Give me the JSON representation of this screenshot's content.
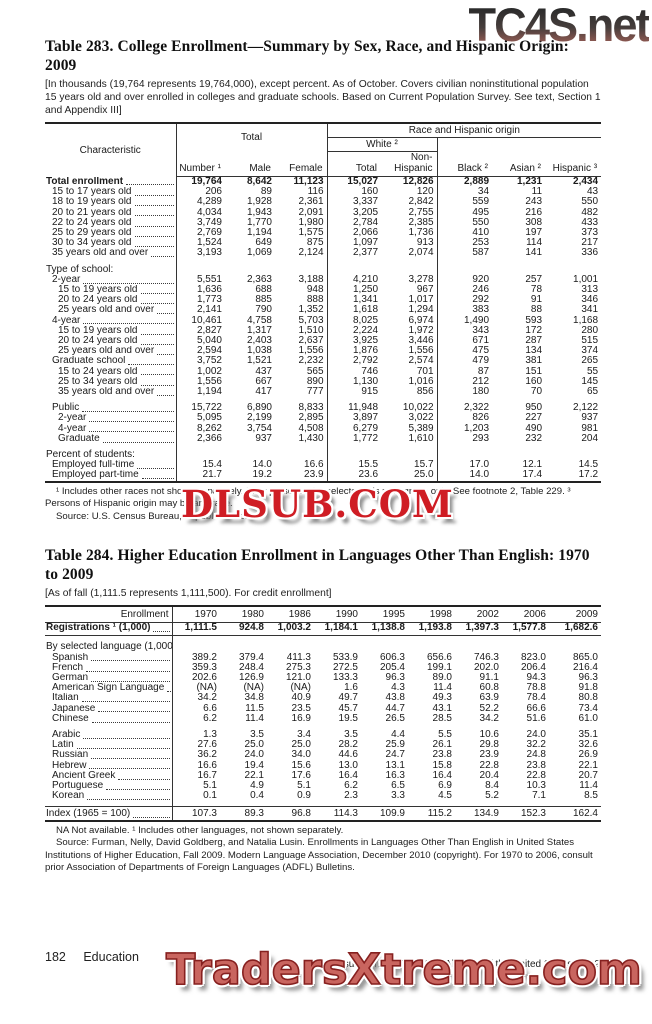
{
  "watermarks": {
    "top": "TC4S.net",
    "middle": "DLSUB.COM",
    "bottom": "TradersXtreme.com",
    "colors": {
      "middle_red": "#cf1d24",
      "bottom_salmon": "#c9655f",
      "top_gradient_end": "#8e5047"
    }
  },
  "table283": {
    "title": "Table 283. College Enrollment—Summary by Sex, Race, and Hispanic Origin: 2009",
    "headnote": "[In thousands (19,764 represents 19,764,000), except percent. As of October. Covers civilian noninstitutional population 15 years old and over enrolled in colleges and graduate schools. Based on Current Population Survey. See text, Section 1 and Appendix III]",
    "header": {
      "characteristic": "Characteristic",
      "total_group": "Total",
      "race_group": "Race and Hispanic origin",
      "white_group": "White ²",
      "columns": [
        "Number ¹",
        "Male",
        "Female",
        "Total",
        "Non-Hispanic",
        "Black ²",
        "Asian ²",
        "Hispanic ³"
      ]
    },
    "rows": [
      {
        "label": "Total enrollment",
        "indent": 0,
        "bold": true,
        "values": [
          "19,764",
          "8,642",
          "11,123",
          "15,027",
          "12,826",
          "2,889",
          "1,231",
          "2,434"
        ]
      },
      {
        "label": "15 to 17 years old",
        "indent": 1,
        "values": [
          "206",
          "89",
          "116",
          "160",
          "120",
          "34",
          "11",
          "43"
        ]
      },
      {
        "label": "18 to 19 years old",
        "indent": 1,
        "values": [
          "4,289",
          "1,928",
          "2,361",
          "3,337",
          "2,842",
          "559",
          "243",
          "550"
        ]
      },
      {
        "label": "20 to 21 years old",
        "indent": 1,
        "values": [
          "4,034",
          "1,943",
          "2,091",
          "3,205",
          "2,755",
          "495",
          "216",
          "482"
        ]
      },
      {
        "label": "22 to 24 years old",
        "indent": 1,
        "values": [
          "3,749",
          "1,770",
          "1,980",
          "2,784",
          "2,385",
          "550",
          "308",
          "433"
        ]
      },
      {
        "label": "25 to 29 years old",
        "indent": 1,
        "values": [
          "2,769",
          "1,194",
          "1,575",
          "2,066",
          "1,736",
          "410",
          "197",
          "373"
        ]
      },
      {
        "label": "30 to 34 years old",
        "indent": 1,
        "values": [
          "1,524",
          "649",
          "875",
          "1,097",
          "913",
          "253",
          "114",
          "217"
        ]
      },
      {
        "label": "35 years old and over",
        "indent": 1,
        "values": [
          "3,193",
          "1,069",
          "2,124",
          "2,377",
          "2,074",
          "587",
          "141",
          "336"
        ]
      },
      {
        "label": "Type of school:",
        "indent": 0,
        "section": true,
        "gap": true
      },
      {
        "label": "2-year",
        "indent": 1,
        "values": [
          "5,551",
          "2,363",
          "3,188",
          "4,210",
          "3,278",
          "920",
          "257",
          "1,001"
        ]
      },
      {
        "label": "15 to 19 years old",
        "indent": 2,
        "values": [
          "1,636",
          "688",
          "948",
          "1,250",
          "967",
          "246",
          "78",
          "313"
        ]
      },
      {
        "label": "20 to 24 years old",
        "indent": 2,
        "values": [
          "1,773",
          "885",
          "888",
          "1,341",
          "1,017",
          "292",
          "91",
          "346"
        ]
      },
      {
        "label": "25 years old and over",
        "indent": 2,
        "values": [
          "2,141",
          "790",
          "1,352",
          "1,618",
          "1,294",
          "383",
          "88",
          "341"
        ]
      },
      {
        "label": "4-year",
        "indent": 1,
        "values": [
          "10,461",
          "4,758",
          "5,703",
          "8,025",
          "6,974",
          "1,490",
          "593",
          "1,168"
        ]
      },
      {
        "label": "15 to 19 years old",
        "indent": 2,
        "values": [
          "2,827",
          "1,317",
          "1,510",
          "2,224",
          "1,972",
          "343",
          "172",
          "280"
        ]
      },
      {
        "label": "20 to 24 years old",
        "indent": 2,
        "values": [
          "5,040",
          "2,403",
          "2,637",
          "3,925",
          "3,446",
          "671",
          "287",
          "515"
        ]
      },
      {
        "label": "25 years old and over",
        "indent": 2,
        "values": [
          "2,594",
          "1,038",
          "1,556",
          "1,876",
          "1,556",
          "475",
          "134",
          "374"
        ]
      },
      {
        "label": "Graduate school",
        "indent": 1,
        "values": [
          "3,752",
          "1,521",
          "2,232",
          "2,792",
          "2,574",
          "479",
          "381",
          "265"
        ]
      },
      {
        "label": "15 to 24 years old",
        "indent": 2,
        "values": [
          "1,002",
          "437",
          "565",
          "746",
          "701",
          "87",
          "151",
          "55"
        ]
      },
      {
        "label": "25 to 34 years old",
        "indent": 2,
        "values": [
          "1,556",
          "667",
          "890",
          "1,130",
          "1,016",
          "212",
          "160",
          "145"
        ]
      },
      {
        "label": "35 years old and over",
        "indent": 2,
        "values": [
          "1,194",
          "417",
          "777",
          "915",
          "856",
          "180",
          "70",
          "65"
        ]
      },
      {
        "label": "Public",
        "indent": 1,
        "gap": true,
        "values": [
          "15,722",
          "6,890",
          "8,833",
          "11,948",
          "10,022",
          "2,322",
          "950",
          "2,122"
        ]
      },
      {
        "label": "2-year",
        "indent": 2,
        "values": [
          "5,095",
          "2,199",
          "2,895",
          "3,897",
          "3,022",
          "826",
          "227",
          "937"
        ]
      },
      {
        "label": "4-year",
        "indent": 2,
        "values": [
          "8,262",
          "3,754",
          "4,508",
          "6,279",
          "5,389",
          "1,203",
          "490",
          "981"
        ]
      },
      {
        "label": "Graduate",
        "indent": 2,
        "values": [
          "2,366",
          "937",
          "1,430",
          "1,772",
          "1,610",
          "293",
          "232",
          "204"
        ]
      },
      {
        "label": "Percent of students:",
        "indent": 0,
        "section": true,
        "gap": true
      },
      {
        "label": "Employed full-time",
        "indent": 1,
        "values": [
          "15.4",
          "14.0",
          "16.6",
          "15.5",
          "15.7",
          "17.0",
          "12.1",
          "14.5"
        ]
      },
      {
        "label": "Employed part-time",
        "indent": 1,
        "values": [
          "21.7",
          "19.2",
          "23.9",
          "23.6",
          "25.0",
          "14.0",
          "17.4",
          "17.2"
        ]
      }
    ],
    "footnotes": [
      "¹ Includes other races not shown separately. ² For persons who selected this race group only. See footnote 2, Table 229. ³ Persons of Hispanic origin may be any race.",
      "Source: U.S. Census Bureau, unpublished data."
    ]
  },
  "table284": {
    "title": "Table 284. Higher Education Enrollment in Languages Other Than English: 1970 to 2009",
    "headnote": "[As of fall (1,111.5 represents 1,111,500). For credit enrollment]",
    "header": {
      "label": "Enrollment",
      "years": [
        "1970",
        "1980",
        "1986",
        "1990",
        "1995",
        "1998",
        "2002",
        "2006",
        "2009"
      ]
    },
    "rows": [
      {
        "label": "Registrations ¹ (1,000)",
        "indent": 0,
        "bold": true,
        "ruleb": true,
        "values": [
          "1,111.5",
          "924.8",
          "1,003.2",
          "1,184.1",
          "1,138.8",
          "1,193.8",
          "1,397.3",
          "1,577.8",
          "1,682.6"
        ]
      },
      {
        "label": "By selected language (1,000):",
        "indent": 0,
        "section": true,
        "gap": true
      },
      {
        "label": "Spanish",
        "indent": 1,
        "values": [
          "389.2",
          "379.4",
          "411.3",
          "533.9",
          "606.3",
          "656.6",
          "746.3",
          "823.0",
          "865.0"
        ]
      },
      {
        "label": "French",
        "indent": 1,
        "values": [
          "359.3",
          "248.4",
          "275.3",
          "272.5",
          "205.4",
          "199.1",
          "202.0",
          "206.4",
          "216.4"
        ]
      },
      {
        "label": "German",
        "indent": 1,
        "values": [
          "202.6",
          "126.9",
          "121.0",
          "133.3",
          "96.3",
          "89.0",
          "91.1",
          "94.3",
          "96.3"
        ]
      },
      {
        "label": "American Sign Language",
        "indent": 1,
        "values": [
          "(NA)",
          "(NA)",
          "(NA)",
          "1.6",
          "4.3",
          "11.4",
          "60.8",
          "78.8",
          "91.8"
        ]
      },
      {
        "label": "Italian",
        "indent": 1,
        "values": [
          "34.2",
          "34.8",
          "40.9",
          "49.7",
          "43.8",
          "49.3",
          "63.9",
          "78.4",
          "80.8"
        ]
      },
      {
        "label": "Japanese",
        "indent": 1,
        "values": [
          "6.6",
          "11.5",
          "23.5",
          "45.7",
          "44.7",
          "43.1",
          "52.2",
          "66.6",
          "73.4"
        ]
      },
      {
        "label": "Chinese",
        "indent": 1,
        "values": [
          "6.2",
          "11.4",
          "16.9",
          "19.5",
          "26.5",
          "28.5",
          "34.2",
          "51.6",
          "61.0"
        ]
      },
      {
        "label": "Arabic",
        "indent": 1,
        "gap": true,
        "values": [
          "1.3",
          "3.5",
          "3.4",
          "3.5",
          "4.4",
          "5.5",
          "10.6",
          "24.0",
          "35.1"
        ]
      },
      {
        "label": "Latin",
        "indent": 1,
        "values": [
          "27.6",
          "25.0",
          "25.0",
          "28.2",
          "25.9",
          "26.1",
          "29.8",
          "32.2",
          "32.6"
        ]
      },
      {
        "label": "Russian",
        "indent": 1,
        "values": [
          "36.2",
          "24.0",
          "34.0",
          "44.6",
          "24.7",
          "23.8",
          "23.9",
          "24.8",
          "26.9"
        ]
      },
      {
        "label": "Hebrew",
        "indent": 1,
        "values": [
          "16.6",
          "19.4",
          "15.6",
          "13.0",
          "13.1",
          "15.8",
          "22.8",
          "23.8",
          "22.1"
        ]
      },
      {
        "label": "Ancient Greek",
        "indent": 1,
        "values": [
          "16.7",
          "22.1",
          "17.6",
          "16.4",
          "16.3",
          "16.4",
          "20.4",
          "22.8",
          "20.7"
        ]
      },
      {
        "label": "Portuguese",
        "indent": 1,
        "values": [
          "5.1",
          "4.9",
          "5.1",
          "6.2",
          "6.5",
          "6.9",
          "8.4",
          "10.3",
          "11.4"
        ]
      },
      {
        "label": "Korean",
        "indent": 1,
        "gapb": true,
        "values": [
          "0.1",
          "0.4",
          "0.9",
          "2.3",
          "3.3",
          "4.5",
          "5.2",
          "7.1",
          "8.5"
        ]
      },
      {
        "label": "Index (1965 = 100)",
        "indent": 0,
        "rulet": true,
        "values": [
          "107.3",
          "89.3",
          "96.8",
          "114.3",
          "109.9",
          "115.2",
          "134.9",
          "152.3",
          "162.4"
        ]
      }
    ],
    "footnotes": [
      "NA Not available. ¹ Includes other languages, not shown separately.",
      "Source: Furman, Nelly, David Goldberg, and Natalia Lusin. Enrollments in Languages Other Than English in United States Institutions of Higher Education, Fall 2009. Modern Language Association, December 2010 (copyright). For 1970 to 2006, consult prior Association of Departments of Foreign Languages (ADFL) Bulletins."
    ]
  },
  "footer": {
    "page_number": "182",
    "section": "Education",
    "source_line": "U.S. Census Bureau, Statistical Abstract of the United States: 2012"
  }
}
